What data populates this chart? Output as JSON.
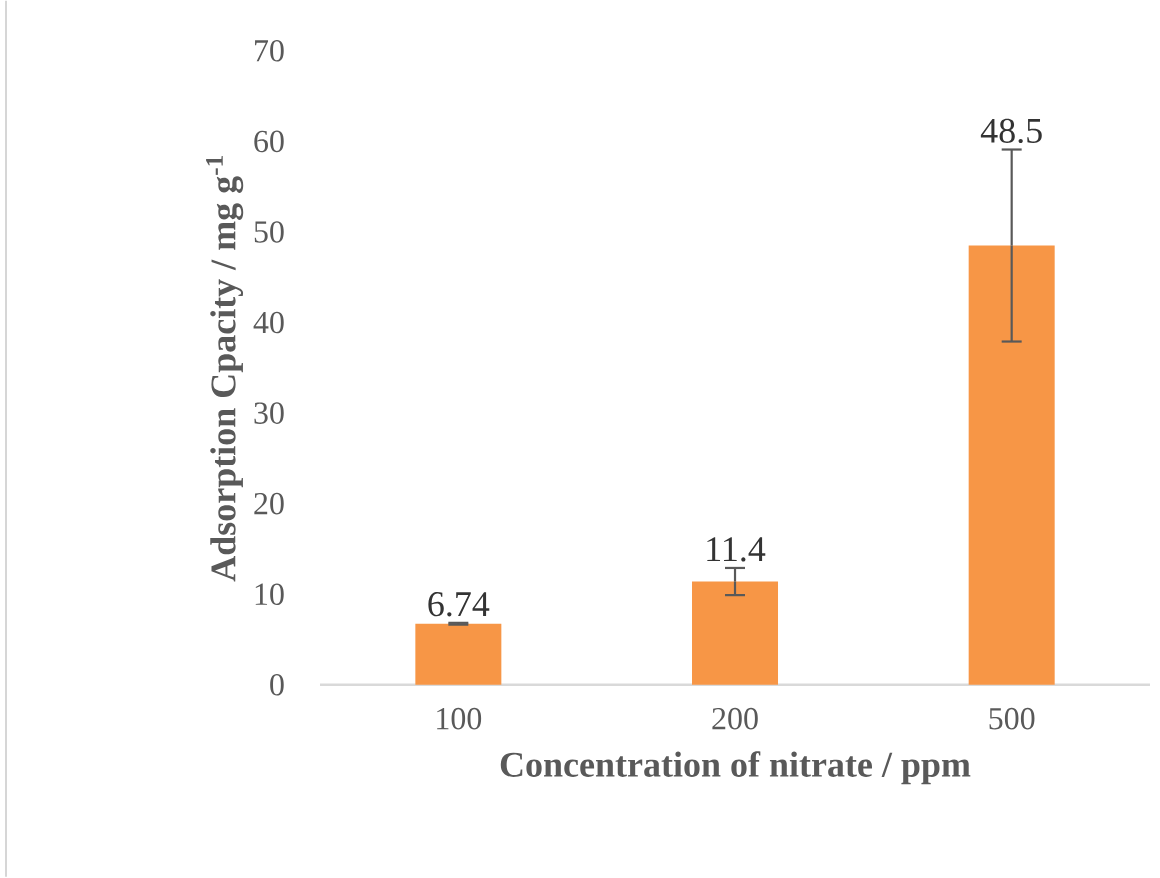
{
  "chart_data": {
    "type": "bar",
    "xlabel": "Concentration of nitrate / ppm",
    "ylabel": "Adsorption Cpacity / mg g$^{-1}$",
    "categories": [
      "100",
      "200",
      "500"
    ],
    "values": [
      6.74,
      11.4,
      48.5
    ],
    "errors": [
      0.1,
      1.5,
      10.6
    ],
    "color": "#f79646",
    "ylim": [
      0,
      70
    ],
    "yticks": [
      0,
      10,
      20,
      30,
      40,
      50,
      60,
      70
    ],
    "data_labels": true
  }
}
